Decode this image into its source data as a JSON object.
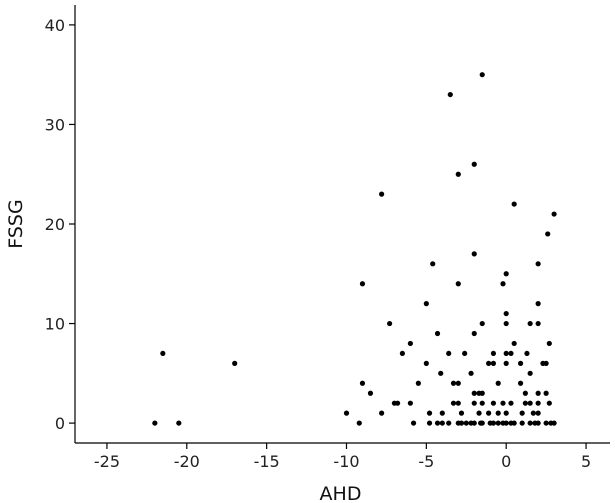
{
  "chart_data": {
    "type": "scatter",
    "title": "",
    "xlabel": "AHD",
    "ylabel": "FSSG",
    "xlim": [
      -27,
      6.5
    ],
    "ylim": [
      -2,
      42
    ],
    "xticks": [
      -25,
      -20,
      -15,
      -10,
      -5,
      0,
      5
    ],
    "yticks": [
      0,
      10,
      20,
      30,
      40
    ],
    "xtick_labels": [
      "-25",
      "-20",
      "-15",
      "-10",
      "-5",
      "0",
      "5"
    ],
    "ytick_labels": [
      "0",
      "10",
      "20",
      "30",
      "40"
    ],
    "grid": false,
    "point_color": "#000000",
    "points": [
      [
        -22,
        0
      ],
      [
        -21.5,
        7
      ],
      [
        -20.5,
        0
      ],
      [
        -17,
        6
      ],
      [
        -10,
        1
      ],
      [
        -9.2,
        0
      ],
      [
        -9,
        14
      ],
      [
        -9,
        4
      ],
      [
        -8.5,
        3
      ],
      [
        -7.8,
        23
      ],
      [
        -7.8,
        1
      ],
      [
        -7.3,
        10
      ],
      [
        -7,
        2
      ],
      [
        -6.8,
        2
      ],
      [
        -6.5,
        7
      ],
      [
        -6,
        8
      ],
      [
        -6,
        2
      ],
      [
        -5.8,
        0
      ],
      [
        -5.5,
        4
      ],
      [
        -5,
        12
      ],
      [
        -5,
        6
      ],
      [
        -4.8,
        1
      ],
      [
        -4.8,
        0
      ],
      [
        -4.6,
        16
      ],
      [
        -4.3,
        9
      ],
      [
        -4.3,
        0
      ],
      [
        -4.1,
        5
      ],
      [
        -4,
        1
      ],
      [
        -4,
        0
      ],
      [
        -3.6,
        7
      ],
      [
        -3.6,
        0
      ],
      [
        -3.5,
        33
      ],
      [
        -3.3,
        4
      ],
      [
        -3.3,
        2
      ],
      [
        -3,
        25
      ],
      [
        -3,
        14
      ],
      [
        -3,
        4
      ],
      [
        -3,
        2
      ],
      [
        -3,
        0
      ],
      [
        -2.8,
        1
      ],
      [
        -2.8,
        0
      ],
      [
        -2.6,
        7
      ],
      [
        -2.5,
        0
      ],
      [
        -2.2,
        5
      ],
      [
        -2.2,
        0
      ],
      [
        -2,
        26
      ],
      [
        -2,
        17
      ],
      [
        -2,
        9
      ],
      [
        -2,
        3
      ],
      [
        -2,
        2
      ],
      [
        -2,
        0
      ],
      [
        -1.7,
        3
      ],
      [
        -1.7,
        1
      ],
      [
        -1.6,
        0
      ],
      [
        -1.5,
        35
      ],
      [
        -1.5,
        10
      ],
      [
        -1.5,
        3
      ],
      [
        -1.5,
        2
      ],
      [
        -1.5,
        0
      ],
      [
        -1.1,
        6
      ],
      [
        -1.1,
        1
      ],
      [
        -1,
        0
      ],
      [
        -0.8,
        7
      ],
      [
        -0.8,
        6
      ],
      [
        -0.8,
        2
      ],
      [
        -0.8,
        0
      ],
      [
        -0.5,
        4
      ],
      [
        -0.5,
        1
      ],
      [
        -0.5,
        0
      ],
      [
        -0.2,
        14
      ],
      [
        -0.2,
        2
      ],
      [
        -0.2,
        0
      ],
      [
        0,
        15
      ],
      [
        0,
        11
      ],
      [
        0,
        10
      ],
      [
        0,
        7
      ],
      [
        0,
        6
      ],
      [
        0,
        1
      ],
      [
        0,
        0
      ],
      [
        0.3,
        7
      ],
      [
        0.3,
        2
      ],
      [
        0.3,
        0
      ],
      [
        0.5,
        22
      ],
      [
        0.5,
        8
      ],
      [
        0.5,
        0
      ],
      [
        0.9,
        6
      ],
      [
        0.9,
        4
      ],
      [
        1,
        1
      ],
      [
        1,
        0
      ],
      [
        1.2,
        3
      ],
      [
        1.2,
        2
      ],
      [
        1.3,
        7
      ],
      [
        1.5,
        10
      ],
      [
        1.5,
        5
      ],
      [
        1.5,
        2
      ],
      [
        1.5,
        0
      ],
      [
        1.7,
        1
      ],
      [
        1.8,
        0
      ],
      [
        2,
        16
      ],
      [
        2,
        12
      ],
      [
        2,
        10
      ],
      [
        2,
        3
      ],
      [
        2,
        2
      ],
      [
        2,
        1
      ],
      [
        2,
        0
      ],
      [
        2.3,
        6
      ],
      [
        2.5,
        6
      ],
      [
        2.5,
        3
      ],
      [
        2.5,
        0
      ],
      [
        2.6,
        19
      ],
      [
        2.7,
        8
      ],
      [
        2.7,
        2
      ],
      [
        2.8,
        0
      ],
      [
        3,
        21
      ],
      [
        3,
        0
      ]
    ]
  }
}
